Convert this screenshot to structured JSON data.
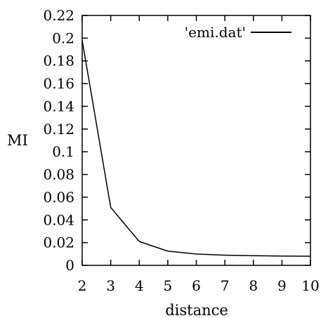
{
  "chart_data": {
    "type": "line",
    "xlabel": "distance",
    "ylabel": "MI",
    "xlim": [
      2,
      10
    ],
    "ylim": [
      0,
      0.22
    ],
    "x_ticks": [
      "2",
      "3",
      "4",
      "5",
      "6",
      "7",
      "8",
      "9",
      "10"
    ],
    "y_ticks": [
      "0",
      "0.02",
      "0.04",
      "0.06",
      "0.08",
      "0.1",
      "0.12",
      "0.14",
      "0.16",
      "0.18",
      "0.2",
      "0.22"
    ],
    "grid": false,
    "legend_position": "top-right",
    "series": [
      {
        "name": "'emi.dat'",
        "x": [
          2,
          3,
          4,
          5,
          6,
          7,
          8,
          9,
          10
        ],
        "y": [
          0.198,
          0.051,
          0.021,
          0.0125,
          0.01,
          0.009,
          0.0085,
          0.0082,
          0.008
        ],
        "color": "#000000"
      }
    ]
  }
}
